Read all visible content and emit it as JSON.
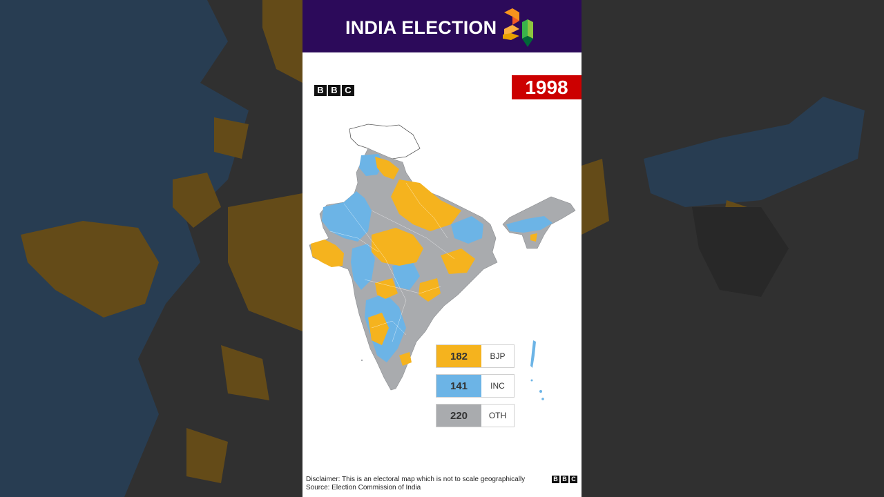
{
  "header": {
    "title": "INDIA ELECTION",
    "logo_digits": "24"
  },
  "brand": {
    "letters": [
      "B",
      "B",
      "C"
    ]
  },
  "map": {
    "year": "1998",
    "colors": {
      "BJP": "#f5b31e",
      "INC": "#6cb4e6",
      "OTH": "#a9abae",
      "header": "#2c0a5a",
      "year_badge": "#cc0000"
    }
  },
  "legend": [
    {
      "count": "182",
      "party": "BJP",
      "color": "#f5b31e"
    },
    {
      "count": "141",
      "party": "INC",
      "color": "#6cb4e6"
    },
    {
      "count": "220",
      "party": "OTH",
      "color": "#a9abae"
    }
  ],
  "footer": {
    "disclaimer": "Disclaimer: This is an electoral map which is not to scale geographically",
    "source": "Source: Election Commission of India"
  }
}
